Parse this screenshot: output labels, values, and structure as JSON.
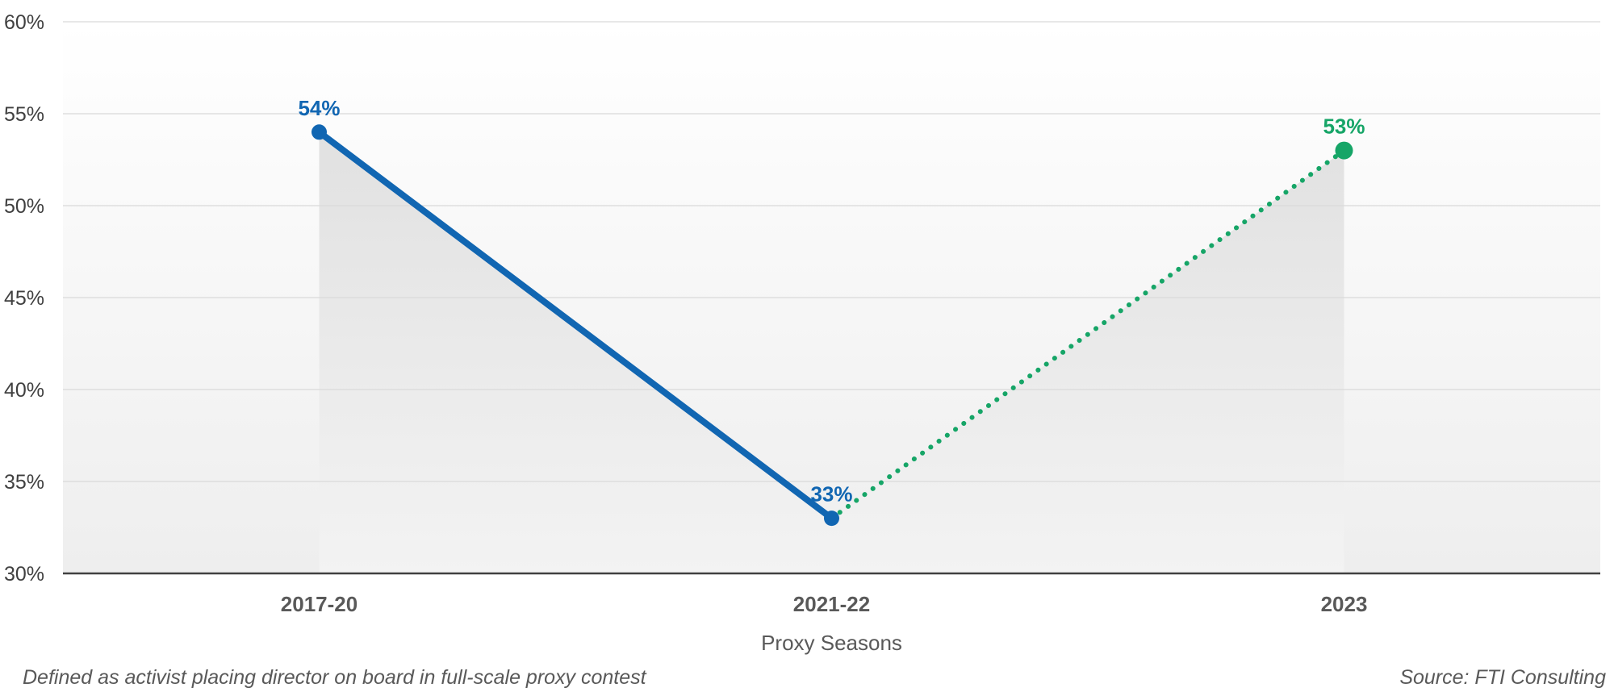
{
  "chart_data": {
    "type": "line",
    "categories": [
      "2017-20",
      "2021-22",
      "2023"
    ],
    "values": [
      54,
      33,
      53
    ],
    "data_labels": [
      "54%",
      "33%",
      "53%"
    ],
    "label_colors": [
      "#1166B2",
      "#1166B2",
      "#16A567"
    ],
    "point_colors": [
      "#1166B2",
      "#1166B2",
      "#16A567"
    ],
    "segments": [
      {
        "from": 0,
        "to": 1,
        "color": "#1166B2",
        "style": "solid"
      },
      {
        "from": 1,
        "to": 2,
        "color": "#16A567",
        "style": "dotted"
      }
    ],
    "xlabel": "Proxy Seasons",
    "ylim": [
      30,
      60
    ],
    "ytick_step": 5,
    "ytick_labels": [
      "30%",
      "35%",
      "40%",
      "45%",
      "50%",
      "55%",
      "60%"
    ],
    "grid": "horizontal",
    "legend": "none",
    "area_fill": true,
    "style": {
      "grid_color": "#D9D9D9",
      "axis_color": "#404040",
      "tick_text_color": "#404040",
      "category_text_color": "#595959",
      "axis_title_color": "#595959",
      "plot_bg_top": "#FFFFFF",
      "plot_bg_bottom": "#EEEEEE",
      "area_top": "#E1E1E1",
      "area_bottom": "#F3F3F3"
    }
  },
  "footer": {
    "note": "Defined as activist placing director on board in full-scale proxy contest",
    "source": "Source: FTI Consulting"
  }
}
